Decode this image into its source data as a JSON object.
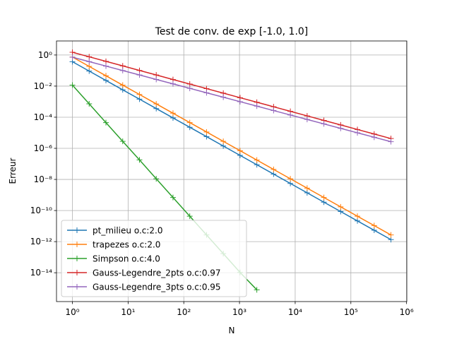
{
  "chart_data": {
    "type": "line",
    "title": "Test de conv. de exp [-1.0, 1.0]",
    "xlabel": "N",
    "ylabel": "Erreur",
    "xscale": "log",
    "yscale": "log",
    "grid": true,
    "legend": "lower left",
    "x": [
      1,
      2,
      4,
      8,
      16,
      32,
      64,
      128,
      256,
      512,
      1024,
      2048,
      4096,
      8192,
      16384,
      32768,
      65536,
      131072,
      262144,
      524288
    ],
    "xlim": [
      0.518,
      1010000
    ],
    "ylim": [
      1.4e-16,
      8
    ],
    "xticks": [
      {
        "value": 1,
        "label": "10⁰"
      },
      {
        "value": 10,
        "label": "10¹"
      },
      {
        "value": 100,
        "label": "10²"
      },
      {
        "value": 1000,
        "label": "10³"
      },
      {
        "value": 10000,
        "label": "10⁴"
      },
      {
        "value": 100000,
        "label": "10⁵"
      },
      {
        "value": 1000000,
        "label": "10⁶"
      }
    ],
    "yticks": [
      {
        "value": 1,
        "label": "10⁰"
      },
      {
        "value": 0.01,
        "label": "10⁻²"
      },
      {
        "value": 0.0001,
        "label": "10⁻⁴"
      },
      {
        "value": 1e-06,
        "label": "10⁻⁶"
      },
      {
        "value": 1e-08,
        "label": "10⁻⁸"
      },
      {
        "value": 1e-10,
        "label": "10⁻¹⁰"
      },
      {
        "value": 1e-12,
        "label": "10⁻¹²"
      },
      {
        "value": 1e-14,
        "label": "10⁻¹⁴"
      }
    ],
    "series": [
      {
        "name": "pt_milieu o.c:2.0",
        "color": "#1f77b4",
        "values": [
          0.37,
          0.0925,
          0.0231,
          0.00578,
          0.00145,
          0.000361,
          9.03e-05,
          2.26e-05,
          5.65e-06,
          1.41e-06,
          3.53e-07,
          8.82e-08,
          2.21e-08,
          5.51e-09,
          1.38e-09,
          3.45e-10,
          8.61e-11,
          2.15e-11,
          5.38e-12,
          1.35e-12
        ]
      },
      {
        "name": "trapezes o.c:2.0",
        "color": "#ff7f0e",
        "values": [
          0.74,
          0.185,
          0.0462,
          0.01156,
          0.0029,
          0.000722,
          0.000181,
          4.52e-05,
          1.13e-05,
          2.82e-06,
          7.06e-07,
          1.76e-07,
          4.41e-08,
          1.1e-08,
          2.76e-09,
          6.9e-10,
          1.72e-10,
          4.31e-11,
          1.08e-11,
          2.69e-12
        ]
      },
      {
        "name": "Simpson o.c:4.0",
        "color": "#2ca02c",
        "values": [
          0.0116,
          0.000725,
          4.5e-05,
          2.8e-06,
          1.8e-07,
          1.1e-08,
          6.9e-10,
          4.3e-11,
          2.7e-12,
          1.7e-13,
          1.05e-14,
          8e-16,
          null,
          null,
          null,
          null,
          null,
          null,
          null,
          null
        ]
      },
      {
        "name": "Gauss-Legendre_2pts o.c:0.97",
        "color": "#d62728",
        "values": [
          1.5,
          0.766,
          0.391,
          0.2,
          0.102,
          0.052,
          0.0265,
          0.01355,
          0.00692,
          0.00353,
          0.0018,
          0.00092,
          0.00047,
          0.00024,
          0.000122,
          6.25e-05,
          3.19e-05,
          1.63e-05,
          8.3e-06,
          4.25e-06
        ]
      },
      {
        "name": "Gauss-Legendre_3pts o.c:0.95",
        "color": "#9467bd",
        "values": [
          0.72,
          0.375,
          0.194,
          0.1,
          0.052,
          0.0269,
          0.0139,
          0.0072,
          0.00373,
          0.00193,
          0.001,
          0.000518,
          0.000268,
          0.000139,
          7.18e-05,
          3.72e-05,
          1.92e-05,
          9.95e-06,
          5.15e-06,
          2.67e-06
        ]
      }
    ]
  }
}
